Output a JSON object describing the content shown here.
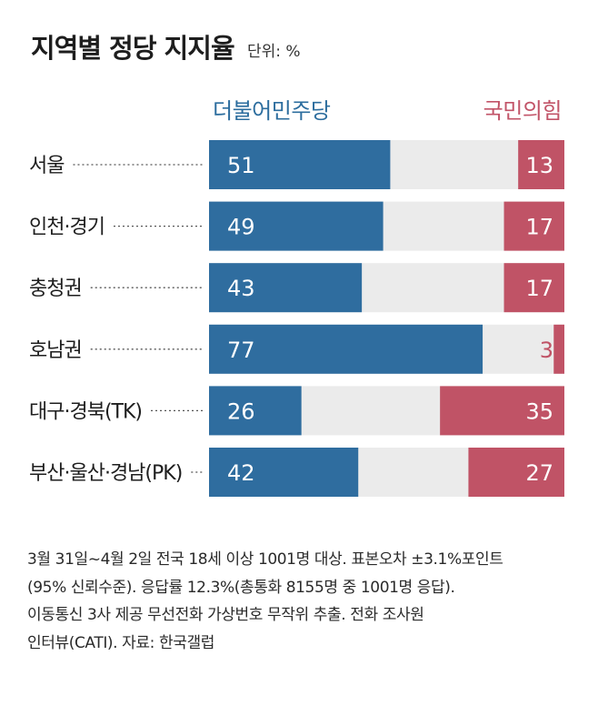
{
  "title": "지역별 정당 지지율",
  "unit": "단위: %",
  "legend": {
    "dem": "더불어민주당",
    "ppp": "국민의힘"
  },
  "colors": {
    "dem": "#2f6d9f",
    "ppp": "#c05366",
    "rest": "#ebebeb",
    "dots": "#555555"
  },
  "chart_data": {
    "type": "bar",
    "stacked": true,
    "orientation": "horizontal",
    "title": "지역별 정당 지지율",
    "unit": "%",
    "xlim": [
      0,
      100
    ],
    "categories": [
      "서울",
      "인천·경기",
      "충청권",
      "호남권",
      "대구·경북(TK)",
      "부산·울산·경남(PK)"
    ],
    "series": [
      {
        "name": "더불어민주당",
        "values": [
          51,
          49,
          43,
          77,
          26,
          42
        ]
      },
      {
        "name": "국민의힘",
        "values": [
          13,
          17,
          17,
          3,
          35,
          27
        ]
      }
    ]
  },
  "notes": [
    "3월 31일~4월 2일 전국 18세 이상 1001명 대상. 표본오차 ±3.1%포인트",
    "(95% 신뢰수준). 응답률 12.3%(총통화 8155명 중 1001명 응답).",
    "이동통신 3사 제공 무선전화 가상번호 무작위 추출. 전화 조사원",
    "인터뷰(CATI). 자료: 한국갤럽"
  ]
}
